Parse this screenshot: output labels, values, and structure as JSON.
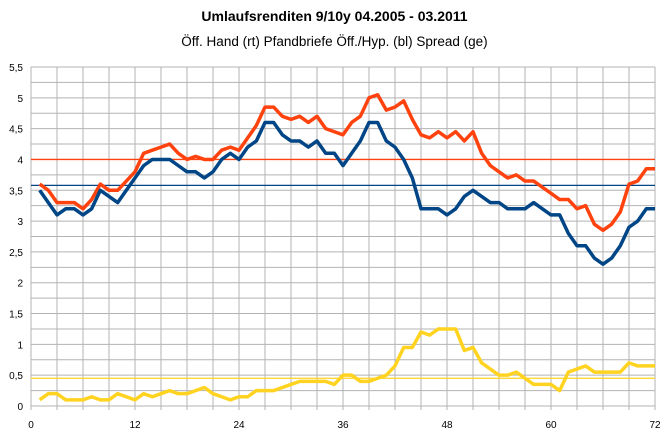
{
  "chart_data": {
    "type": "line",
    "title": "Umlaufsrenditen 9/10y  04.2005 - 03.2011",
    "subtitle": "Öff. Hand (rt) Pfandbriefe Öff./Hyp. (bl) Spread (ge)",
    "xlim": [
      0,
      72
    ],
    "ylim": [
      0,
      5.5
    ],
    "x_ticks": [
      "0",
      "12",
      "24",
      "36",
      "48",
      "60",
      "72"
    ],
    "y_ticks": [
      "0",
      "0,5",
      "1",
      "1,5",
      "2",
      "2,5",
      "3",
      "3,5",
      "4",
      "4,5",
      "5",
      "5,5"
    ],
    "grid": true,
    "x": [
      1,
      2,
      3,
      4,
      5,
      6,
      7,
      8,
      9,
      10,
      11,
      12,
      13,
      14,
      15,
      16,
      17,
      18,
      19,
      20,
      21,
      22,
      23,
      24,
      25,
      26,
      27,
      28,
      29,
      30,
      31,
      32,
      33,
      34,
      35,
      36,
      37,
      38,
      39,
      40,
      41,
      42,
      43,
      44,
      45,
      46,
      47,
      48,
      49,
      50,
      51,
      52,
      53,
      54,
      55,
      56,
      57,
      58,
      59,
      60,
      61,
      62,
      63,
      64,
      65,
      66,
      67,
      68,
      69,
      70,
      71,
      72
    ],
    "series": [
      {
        "key": "red",
        "color": "#ff420e",
        "average": 4.0,
        "values": [
          3.6,
          3.5,
          3.3,
          3.3,
          3.3,
          3.2,
          3.35,
          3.6,
          3.5,
          3.5,
          3.65,
          3.8,
          4.1,
          4.15,
          4.2,
          4.25,
          4.1,
          4.0,
          4.05,
          4.0,
          4.0,
          4.15,
          4.2,
          4.15,
          4.35,
          4.55,
          4.85,
          4.85,
          4.7,
          4.65,
          4.7,
          4.6,
          4.7,
          4.5,
          4.45,
          4.4,
          4.6,
          4.7,
          5.0,
          5.05,
          4.8,
          4.85,
          4.95,
          4.65,
          4.4,
          4.35,
          4.45,
          4.35,
          4.45,
          4.3,
          4.45,
          4.1,
          3.9,
          3.8,
          3.7,
          3.75,
          3.65,
          3.65,
          3.55,
          3.45,
          3.35,
          3.35,
          3.2,
          3.25,
          2.95,
          2.85,
          2.95,
          3.15,
          3.6,
          3.65,
          3.85,
          3.85
        ]
      },
      {
        "key": "blue",
        "color": "#004586",
        "average": 3.58,
        "values": [
          3.5,
          3.3,
          3.1,
          3.2,
          3.2,
          3.1,
          3.2,
          3.5,
          3.4,
          3.3,
          3.5,
          3.7,
          3.9,
          4.0,
          4.0,
          4.0,
          3.9,
          3.8,
          3.8,
          3.7,
          3.8,
          4.0,
          4.1,
          4.0,
          4.2,
          4.3,
          4.6,
          4.6,
          4.4,
          4.3,
          4.3,
          4.2,
          4.3,
          4.1,
          4.1,
          3.9,
          4.1,
          4.3,
          4.6,
          4.6,
          4.3,
          4.2,
          4.0,
          3.7,
          3.2,
          3.2,
          3.2,
          3.1,
          3.2,
          3.4,
          3.5,
          3.4,
          3.3,
          3.3,
          3.2,
          3.2,
          3.2,
          3.3,
          3.2,
          3.1,
          3.1,
          2.8,
          2.6,
          2.6,
          2.4,
          2.3,
          2.4,
          2.6,
          2.9,
          3.0,
          3.2,
          3.2
        ]
      },
      {
        "key": "yellow",
        "color": "#ffd320",
        "average": 0.45,
        "values": [
          0.1,
          0.2,
          0.2,
          0.1,
          0.1,
          0.1,
          0.15,
          0.1,
          0.1,
          0.2,
          0.15,
          0.1,
          0.2,
          0.15,
          0.2,
          0.25,
          0.2,
          0.2,
          0.25,
          0.3,
          0.2,
          0.15,
          0.1,
          0.15,
          0.15,
          0.25,
          0.25,
          0.25,
          0.3,
          0.35,
          0.4,
          0.4,
          0.4,
          0.4,
          0.35,
          0.5,
          0.5,
          0.4,
          0.4,
          0.45,
          0.5,
          0.65,
          0.95,
          0.95,
          1.2,
          1.15,
          1.25,
          1.25,
          1.25,
          0.9,
          0.95,
          0.7,
          0.6,
          0.5,
          0.5,
          0.55,
          0.45,
          0.35,
          0.35,
          0.35,
          0.25,
          0.55,
          0.6,
          0.65,
          0.55,
          0.55,
          0.55,
          0.55,
          0.7,
          0.65,
          0.65,
          0.65
        ]
      }
    ]
  }
}
